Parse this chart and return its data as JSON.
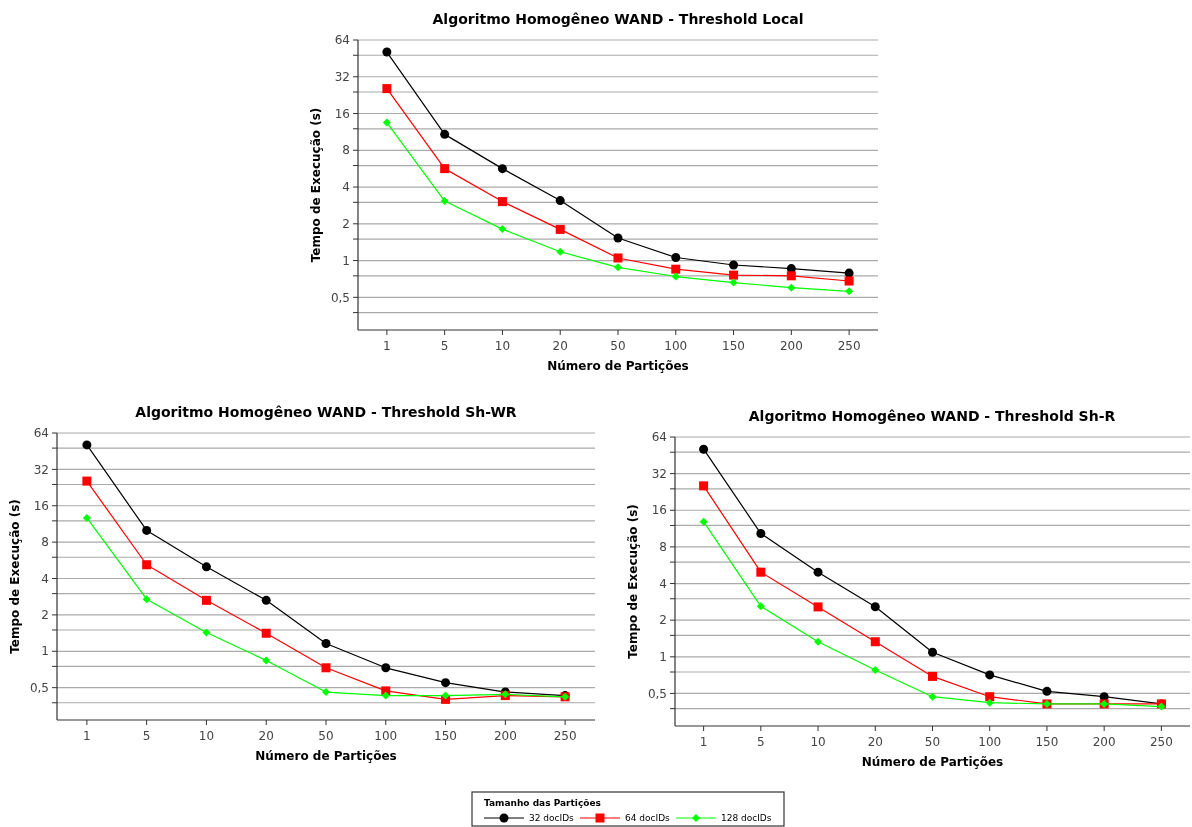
{
  "chart_data": [
    {
      "type": "line",
      "title": "Algoritmo Homogêneo WAND - Threshold Local",
      "xlabel": "Número de Partições",
      "ylabel": "Tempo de Execução (s)",
      "categories": [
        "1",
        "5",
        "10",
        "20",
        "50",
        "100",
        "150",
        "200",
        "250"
      ],
      "log": "y",
      "ylim": [
        0.27,
        64
      ],
      "yticks": [
        {
          "value": 0.375,
          "label": null
        },
        {
          "value": 0.5,
          "label": "0,5"
        },
        {
          "value": 0.75,
          "label": null
        },
        1,
        {
          "value": 1.5,
          "label": null
        },
        2,
        {
          "value": 3,
          "label": null
        },
        4,
        {
          "value": 6,
          "label": null
        },
        8,
        {
          "value": 12,
          "label": null
        },
        16,
        {
          "value": 24,
          "label": null
        },
        32,
        {
          "value": 48,
          "label": null
        },
        64
      ],
      "grid": true,
      "legend": "bottom",
      "legend_title": "Tamanho das Partições",
      "series": [
        {
          "name": "32 docIDs",
          "color": "#000000",
          "marker": "circle",
          "values": [
            51,
            10.8,
            5.66,
            3.1,
            1.53,
            1.06,
            0.92,
            0.86,
            0.79
          ]
        },
        {
          "name": "64 docIDs",
          "color": "#ff0000",
          "marker": "square",
          "values": [
            25.6,
            5.66,
            3.04,
            1.8,
            1.05,
            0.85,
            0.76,
            0.75,
            0.68
          ]
        },
        {
          "name": "128 docIDs",
          "color": "#00ff00",
          "marker": "diamond",
          "values": [
            13.5,
            3.07,
            1.81,
            1.18,
            0.88,
            0.74,
            0.66,
            0.6,
            0.56
          ]
        }
      ]
    },
    {
      "type": "line",
      "title": "Algoritmo Homogêneo WAND - Threshold Sh-WR",
      "xlabel": "Número de Partições",
      "ylabel": "Tempo de Execução (s)",
      "categories": [
        "1",
        "5",
        "10",
        "20",
        "50",
        "100",
        "150",
        "200",
        "250"
      ],
      "log": "y",
      "ylim": [
        0.27,
        64
      ],
      "yticks": [
        {
          "value": 0.375,
          "label": null
        },
        {
          "value": 0.5,
          "label": "0,5"
        },
        {
          "value": 0.75,
          "label": null
        },
        1,
        {
          "value": 1.5,
          "label": null
        },
        2,
        {
          "value": 3,
          "label": null
        },
        4,
        {
          "value": 6,
          "label": null
        },
        8,
        {
          "value": 12,
          "label": null
        },
        16,
        {
          "value": 24,
          "label": null
        },
        32,
        {
          "value": 48,
          "label": null
        },
        64
      ],
      "grid": true,
      "series": [
        {
          "color": "#000000",
          "marker": "circle",
          "values": [
            51,
            10,
            5.0,
            2.64,
            1.16,
            0.73,
            0.55,
            0.46,
            0.43
          ]
        },
        {
          "color": "#ff0000",
          "marker": "square",
          "values": [
            25.6,
            5.2,
            2.64,
            1.41,
            0.73,
            0.47,
            0.4,
            0.43,
            0.42
          ]
        },
        {
          "color": "#00ff00",
          "marker": "diamond",
          "values": [
            12.7,
            2.7,
            1.43,
            0.84,
            0.46,
            0.43,
            0.43,
            0.44,
            0.42
          ]
        }
      ]
    },
    {
      "type": "line",
      "title": "Algoritmo Homogêneo WAND - Threshold Sh-R",
      "xlabel": "Número de Partições",
      "ylabel": "Tempo de Execução (s)",
      "categories": [
        "1",
        "5",
        "10",
        "20",
        "50",
        "100",
        "150",
        "200",
        "250"
      ],
      "log": "y",
      "ylim": [
        0.27,
        64
      ],
      "yticks": [
        {
          "value": 0.375,
          "label": null
        },
        {
          "value": 0.5,
          "label": "0,5"
        },
        {
          "value": 0.75,
          "label": null
        },
        1,
        {
          "value": 1.5,
          "label": null
        },
        2,
        {
          "value": 3,
          "label": null
        },
        4,
        {
          "value": 6,
          "label": null
        },
        8,
        {
          "value": 12,
          "label": null
        },
        16,
        {
          "value": 24,
          "label": null
        },
        32,
        {
          "value": 48,
          "label": null
        },
        64
      ],
      "grid": true,
      "series": [
        {
          "color": "#000000",
          "marker": "circle",
          "values": [
            50.8,
            10.3,
            4.96,
            2.58,
            1.09,
            0.71,
            0.52,
            0.47,
            0.41
          ]
        },
        {
          "color": "#ff0000",
          "marker": "square",
          "values": [
            25.4,
            4.96,
            2.57,
            1.33,
            0.69,
            0.47,
            0.41,
            0.41,
            0.41
          ]
        },
        {
          "color": "#00ff00",
          "marker": "diamond",
          "values": [
            12.9,
            2.6,
            1.33,
            0.78,
            0.47,
            0.42,
            0.41,
            0.41,
            0.39
          ]
        }
      ]
    }
  ]
}
